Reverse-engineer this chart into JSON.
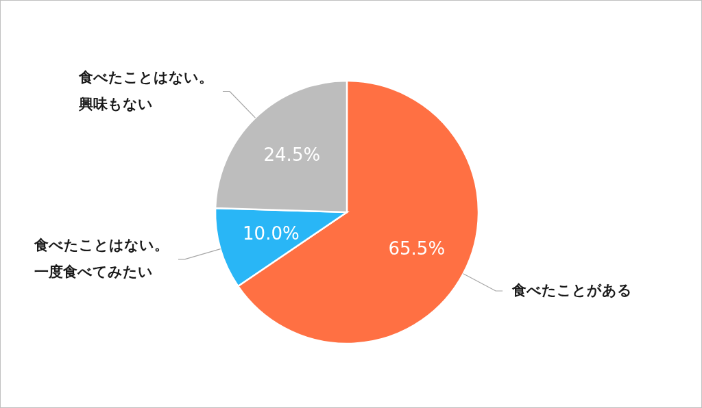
{
  "chart_data": {
    "type": "pie",
    "categories": [
      "食べたことがある",
      "食べたことはない。一度食べてみたい",
      "食べたことはない。興味もない"
    ],
    "values": [
      65.5,
      10.0,
      24.5
    ],
    "colors": [
      "#ff7043",
      "#29b6f6",
      "#bdbdbd"
    ],
    "value_labels": [
      "65.5%",
      "10.0%",
      "24.5%"
    ]
  }
}
